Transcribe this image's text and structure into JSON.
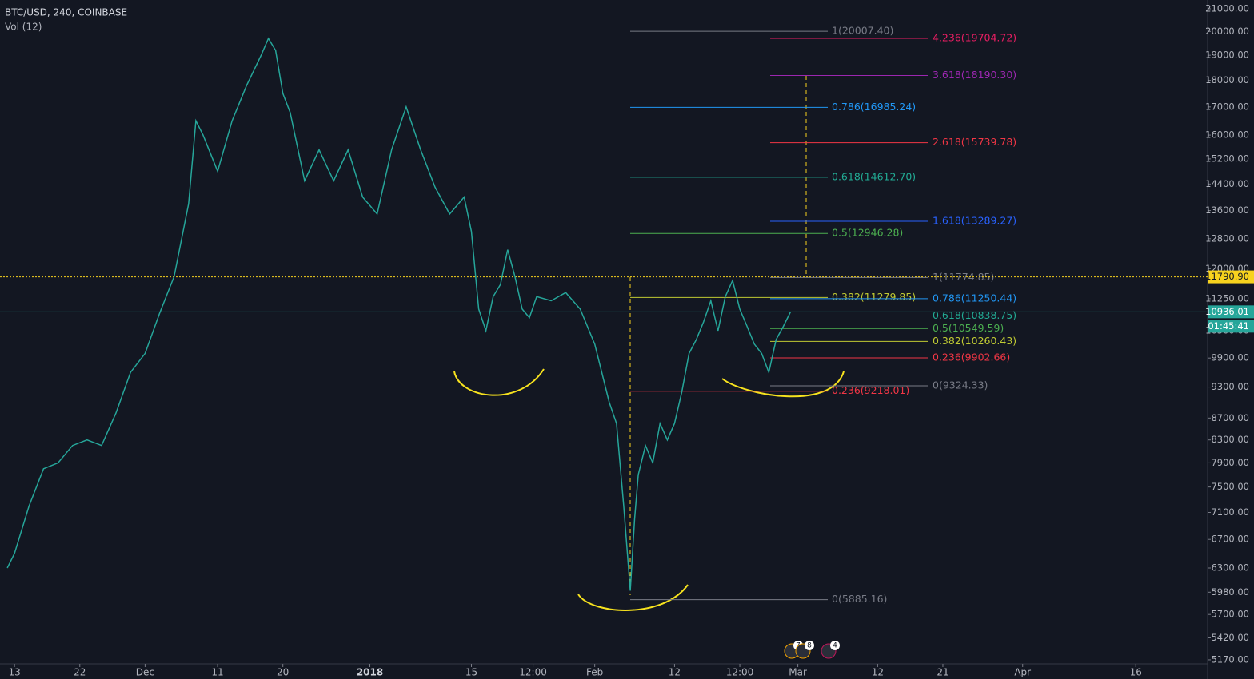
{
  "header": {
    "symbol": "BTC/USD, 240, COINBASE",
    "indicator": "Vol (12)",
    "countdown": "01:45:41",
    "badges": [
      "7",
      "8",
      "4"
    ]
  },
  "chart_data": {
    "type": "line",
    "x": [
      -1,
      0,
      2,
      4,
      6,
      8,
      10,
      12,
      14,
      16,
      18,
      20,
      22,
      24,
      25,
      26,
      28,
      30,
      32,
      34,
      35,
      36,
      37,
      38,
      40,
      42,
      44,
      46,
      48,
      50,
      52,
      54,
      56,
      58,
      60,
      62,
      63,
      64,
      65,
      66,
      67,
      68,
      69,
      70,
      71,
      72,
      74,
      76,
      78,
      80,
      82,
      83,
      84,
      84.9,
      85.5,
      86,
      87,
      88,
      89,
      90,
      91,
      92,
      93,
      94,
      95,
      96,
      97,
      98,
      99,
      100,
      101,
      102,
      103,
      104,
      105,
      106,
      107
    ],
    "values": [
      6300,
      6500,
      7200,
      7800,
      7900,
      8200,
      8300,
      8200,
      8800,
      9600,
      10000,
      10900,
      11800,
      13800,
      16500,
      16000,
      14800,
      16500,
      17800,
      19000,
      19700,
      19200,
      17500,
      16800,
      14500,
      15500,
      14500,
      15500,
      14000,
      13500,
      15500,
      17000,
      15500,
      14300,
      13500,
      14000,
      13000,
      11000,
      10500,
      11300,
      11600,
      12500,
      11800,
      11000,
      10800,
      11300,
      11200,
      11400,
      11000,
      10200,
      9000,
      8600,
      7200,
      6000,
      7000,
      7700,
      8200,
      7900,
      8600,
      8300,
      8600,
      9200,
      10000,
      10300,
      10700,
      11200,
      10500,
      11300,
      11700,
      11000,
      10600,
      10200,
      10000,
      9600,
      10300,
      10600,
      10936.01
    ],
    "color": "#26a69a",
    "log_scale": true,
    "xlim": [
      -2,
      164.5
    ],
    "xticks": [
      {
        "value": 0,
        "label": "13"
      },
      {
        "value": 9,
        "label": "22"
      },
      {
        "value": 18,
        "label": "Dec"
      },
      {
        "value": 28,
        "label": "11"
      },
      {
        "value": 37,
        "label": "20"
      },
      {
        "value": 49,
        "label": "2018"
      },
      {
        "value": 63,
        "label": "15"
      },
      {
        "value": 71.5,
        "label": "12:00"
      },
      {
        "value": 80,
        "label": "Feb"
      },
      {
        "value": 91,
        "label": "12"
      },
      {
        "value": 100,
        "label": "12:00"
      },
      {
        "value": 108,
        "label": "Mar"
      },
      {
        "value": 119,
        "label": "12"
      },
      {
        "value": 128,
        "label": "21"
      },
      {
        "value": 139,
        "label": "Apr"
      },
      {
        "value": 154.6,
        "label": "16"
      }
    ],
    "ylim": [
      5134,
      21400
    ],
    "yticks": [
      {
        "value": 21000,
        "label": "21000.00"
      },
      {
        "value": 20000,
        "label": "20000.00"
      },
      {
        "value": 19000,
        "label": "19000.00"
      },
      {
        "value": 18000,
        "label": "18000.00"
      },
      {
        "value": 17000,
        "label": "17000.00"
      },
      {
        "value": 16000,
        "label": "16000.00"
      },
      {
        "value": 15200,
        "label": "15200.00"
      },
      {
        "value": 14400,
        "label": "14400.00"
      },
      {
        "value": 13600,
        "label": "13600.00"
      },
      {
        "value": 12800,
        "label": "12800.00"
      },
      {
        "value": 12000,
        "label": "12000.00"
      },
      {
        "value": 11250,
        "label": "11250.00"
      },
      {
        "value": 10500,
        "label": "10500.00"
      },
      {
        "value": 9900,
        "label": "9900.00"
      },
      {
        "value": 9300,
        "label": "9300.00"
      },
      {
        "value": 8700,
        "label": "8700.00"
      },
      {
        "value": 8300,
        "label": "8300.00"
      },
      {
        "value": 7900,
        "label": "7900.00"
      },
      {
        "value": 7500,
        "label": "7500.00"
      },
      {
        "value": 7100,
        "label": "7100.00"
      },
      {
        "value": 6700,
        "label": "6700.00"
      },
      {
        "value": 6300,
        "label": "6300.00"
      },
      {
        "value": 5980,
        "label": "5980.00"
      },
      {
        "value": 5700,
        "label": "5700.00"
      },
      {
        "value": 5420,
        "label": "5420.00"
      },
      {
        "value": 5170,
        "label": "5170.00"
      }
    ],
    "hlines": [
      {
        "value": 11790.9,
        "label": "11790.90",
        "color": "#f7d21e"
      },
      {
        "value": 10936.01,
        "color": "#26a69a"
      }
    ],
    "fib_sets": [
      {
        "levels": [
          {
            "label": "1(20007.40)",
            "value": 20007.4,
            "color": "#787b86"
          },
          {
            "label": "0.786(16985.24)",
            "value": 16985.24,
            "color": "#2196f3"
          },
          {
            "label": "0.618(14612.70)",
            "value": 14612.7,
            "color": "#22ab94"
          },
          {
            "label": "0.5(12946.28)",
            "value": 12946.28,
            "color": "#4caf50"
          },
          {
            "label": "0.382(11279.85)",
            "value": 11279.85,
            "color": "#c0ca33"
          },
          {
            "label": "0.236(9218.01)",
            "value": 9218.01,
            "color": "#f23645"
          },
          {
            "label": "0(5885.16)",
            "value": 5885.16,
            "color": "#787b86"
          }
        ]
      },
      {
        "levels": [
          {
            "label": "4.236(19704.72)",
            "value": 19704.72,
            "color": "#e91e63"
          },
          {
            "label": "3.618(18190.30)",
            "value": 18190.3,
            "color": "#9c27b0"
          },
          {
            "label": "2.618(15739.78)",
            "value": 15739.78,
            "color": "#f23645"
          },
          {
            "label": "1.618(13289.27)",
            "value": 13289.27,
            "color": "#2962ff"
          },
          {
            "label": "1(11774.85)",
            "value": 11774.85,
            "color": "#787b86"
          },
          {
            "label": "0.786(11250.44)",
            "value": 11250.44,
            "color": "#2196f3"
          },
          {
            "label": "0.618(10838.75)",
            "value": 10838.75,
            "color": "#22ab94"
          },
          {
            "label": "0.5(10549.59)",
            "value": 10549.59,
            "color": "#4caf50"
          },
          {
            "label": "0.382(10260.43)",
            "value": 10260.43,
            "color": "#c0ca33"
          },
          {
            "label": "0.236(9902.66)",
            "value": 9902.66,
            "color": "#f23645"
          },
          {
            "label": "0(9324.33)",
            "value": 9324.33,
            "color": "#787b86"
          }
        ]
      }
    ]
  }
}
